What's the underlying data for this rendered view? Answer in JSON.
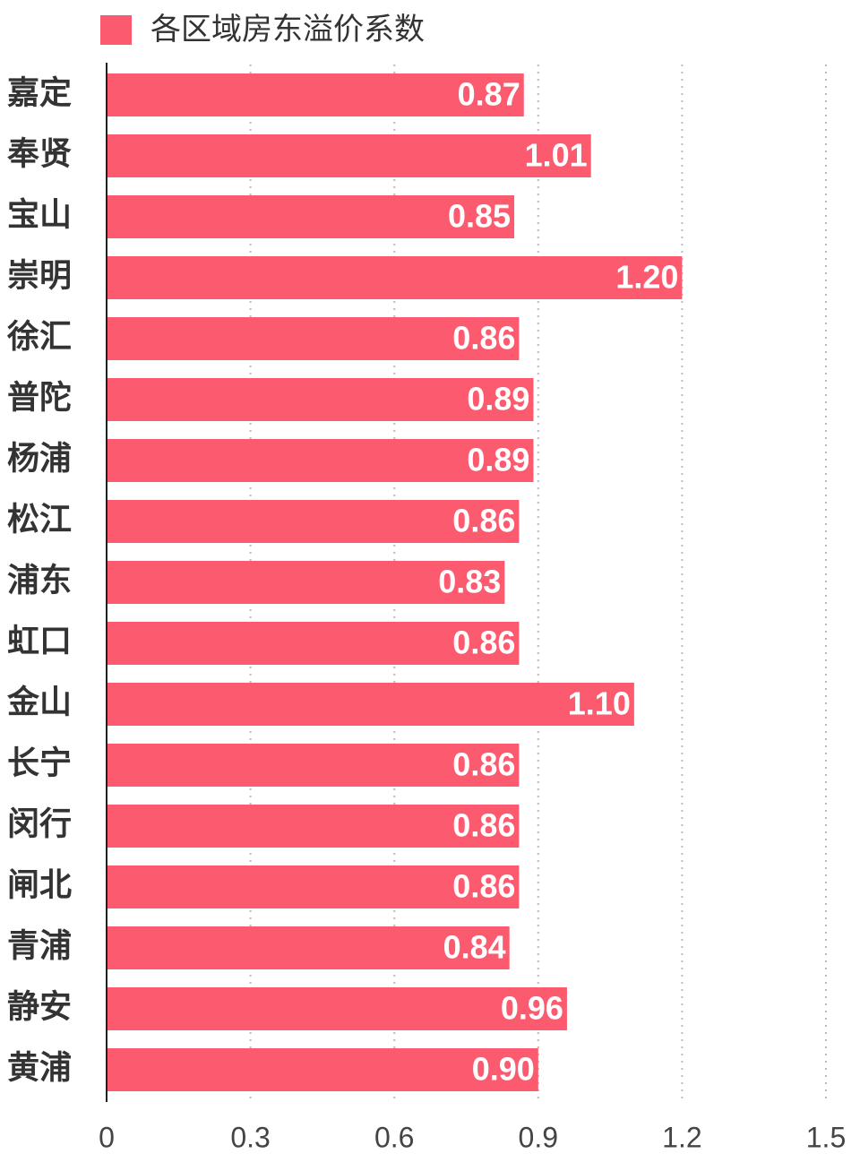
{
  "chart_data": {
    "type": "barh",
    "categories": [
      "嘉定",
      "奉贤",
      "宝山",
      "崇明",
      "徐汇",
      "普陀",
      "杨浦",
      "松江",
      "浦东",
      "虹口",
      "金山",
      "长宁",
      "闵行",
      "闸北",
      "青浦",
      "静安",
      "黄浦"
    ],
    "series": [
      {
        "name": "各区域房东溢价系数",
        "color": "#fc5a6e",
        "values": [
          0.87,
          1.01,
          0.85,
          1.2,
          0.86,
          0.89,
          0.89,
          0.86,
          0.83,
          0.86,
          1.1,
          0.86,
          0.86,
          0.86,
          0.84,
          0.96,
          0.9
        ],
        "value_labels": [
          "0.87",
          "1.01",
          "0.85",
          "1.20",
          "0.86",
          "0.89",
          "0.89",
          "0.86",
          "0.83",
          "0.86",
          "1.10",
          "0.86",
          "0.86",
          "0.86",
          "0.84",
          "0.96",
          "0.90"
        ]
      }
    ],
    "xlim": [
      0,
      1.5
    ],
    "xticks": [
      0,
      0.3,
      0.6,
      0.9,
      1.2,
      1.5
    ],
    "grid": true,
    "legend": "top"
  }
}
